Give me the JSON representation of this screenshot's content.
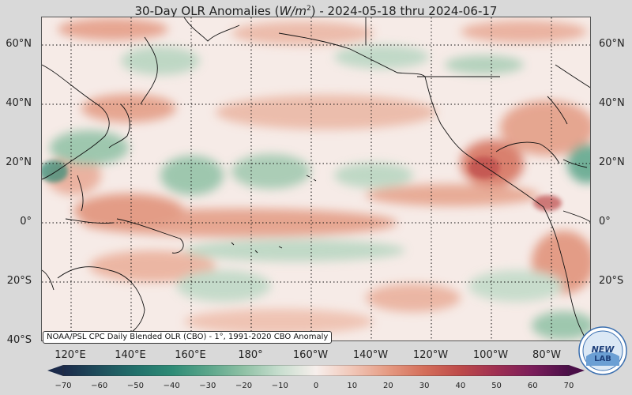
{
  "title": {
    "prefix": "30-Day OLR Anomalies (",
    "units_base": "W/m",
    "units_exp": "2",
    "suffix": ") - 2024-05-18 thru 2024-06-17"
  },
  "credit": "NOAA/PSL CPC Daily Blended OLR (CBO) - 1°, 1991-2020 CBO Anomaly",
  "logo_text": "NEW LAB",
  "chart_data": {
    "type": "heatmap",
    "variable": "OLR anomaly",
    "units": "W/m2",
    "period": [
      "2024-05-18",
      "2024-06-17"
    ],
    "lat_range": [
      -40,
      68
    ],
    "lon_range": [
      103,
      286
    ],
    "lat_ticks": [
      "60°N",
      "40°N",
      "20°N",
      "0°",
      "20°S",
      "40°S"
    ],
    "lon_ticks": [
      "120°E",
      "140°E",
      "160°E",
      "180°",
      "160°W",
      "140°W",
      "120°W",
      "100°W",
      "80°W"
    ],
    "colorbar": {
      "min": -70,
      "max": 70,
      "ticks": [
        "−70",
        "−60",
        "−50",
        "−40",
        "−30",
        "−20",
        "−10",
        "0",
        "10",
        "20",
        "30",
        "40",
        "50",
        "60",
        "70"
      ],
      "colors": [
        "#1b2a4a",
        "#1f4e5c",
        "#22706b",
        "#2e8b76",
        "#5aa58a",
        "#8fc1a5",
        "#c8decf",
        "#f7efec",
        "#f1c7b8",
        "#e59a82",
        "#d46e5a",
        "#bd4a4a",
        "#9e2f52",
        "#7a1d5a",
        "#4a0f48"
      ],
      "extend": "both"
    },
    "grid": "dotted"
  }
}
